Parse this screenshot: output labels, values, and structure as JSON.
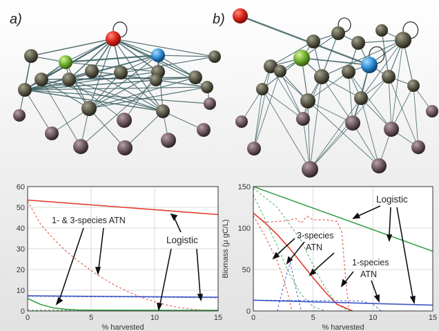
{
  "panels": {
    "a": {
      "letter": "a)"
    },
    "b": {
      "letter": "b)"
    }
  },
  "chart_data": [
    {
      "type": "line",
      "panel": "a",
      "xlabel": "% harvested",
      "ylabel": "",
      "xlim": [
        0,
        15
      ],
      "ylim": [
        0,
        60
      ],
      "xticks": [
        "0",
        "5",
        "10",
        "15"
      ],
      "yticks": [
        "0",
        "10",
        "20",
        "30",
        "40",
        "50",
        "60"
      ],
      "grid": true,
      "series": [
        {
          "color": "#e03a2a",
          "style": "solid",
          "x": [
            0,
            15
          ],
          "y": [
            53.5,
            46.5
          ]
        },
        {
          "color": "#e03a2a",
          "style": "dashed",
          "x": [
            0,
            1,
            2,
            3,
            4,
            5,
            6,
            7,
            8,
            9,
            10,
            11,
            12,
            13,
            14,
            15
          ],
          "y": [
            53,
            42,
            35,
            29,
            24,
            19.5,
            15.5,
            12,
            9,
            6.5,
            4.5,
            2.8,
            1.6,
            0.8,
            0.3,
            0.1
          ]
        },
        {
          "color": "#3b55c4",
          "style": "solid",
          "x": [
            0,
            15
          ],
          "y": [
            7.3,
            6.6
          ]
        },
        {
          "color": "#3b55c4",
          "style": "dashed",
          "x": [
            0,
            15
          ],
          "y": [
            7.1,
            6.4
          ]
        },
        {
          "color": "#3aa04a",
          "style": "solid",
          "x": [
            0,
            1,
            2,
            3,
            4,
            5,
            15
          ],
          "y": [
            6,
            3.2,
            1.5,
            0.8,
            0.5,
            0.4,
            0.3
          ]
        },
        {
          "color": "#3aa04a",
          "style": "dashed",
          "x": [
            0,
            15
          ],
          "y": [
            0.4,
            0.3
          ]
        }
      ],
      "annotations": [
        {
          "text": "1- & 3-species ATN"
        },
        {
          "text": "Logistic"
        }
      ]
    },
    {
      "type": "line",
      "panel": "b",
      "xlabel": "% harvested",
      "ylabel": "Biomass (μ gC/L)",
      "xlim": [
        0,
        15
      ],
      "ylim": [
        0,
        150
      ],
      "xticks": [
        "0",
        "5",
        "10",
        "15"
      ],
      "yticks": [
        "0",
        "50",
        "100",
        "150"
      ],
      "grid": true,
      "series": [
        {
          "color": "#3aa04a",
          "style": "solid",
          "x": [
            0,
            15
          ],
          "y": [
            150,
            72
          ]
        },
        {
          "color": "#3aa04a",
          "style": "dashed",
          "x": [
            0,
            2,
            4,
            5,
            6,
            7,
            8
          ],
          "y": [
            148,
            125,
            85,
            55,
            28,
            8,
            0
          ]
        },
        {
          "color": "#3aa04a",
          "style": "dashed",
          "x": [
            0,
            1,
            2,
            3,
            4,
            5,
            6
          ],
          "y": [
            140,
            110,
            78,
            45,
            20,
            5,
            0
          ]
        },
        {
          "color": "#e03a2a",
          "style": "solid",
          "x": [
            0,
            1,
            2,
            3,
            4,
            5,
            6,
            7,
            8.3
          ],
          "y": [
            118,
            106,
            92,
            76,
            58,
            40,
            23,
            8,
            0
          ]
        },
        {
          "color": "#e03a2a",
          "style": "dashed",
          "x": [
            0,
            1,
            2,
            3,
            3.5,
            4,
            4.5,
            5,
            6,
            7,
            7.4,
            7.7,
            8
          ],
          "y": [
            118,
            107,
            108,
            109,
            112,
            106,
            114,
            110,
            110,
            108,
            95,
            40,
            0
          ]
        },
        {
          "color": "#e03a2a",
          "style": "dashed",
          "x": [
            0,
            1,
            2,
            2.5,
            3,
            3.2
          ],
          "y": [
            115,
            90,
            60,
            40,
            15,
            0
          ]
        },
        {
          "color": "#3b55c4",
          "style": "solid",
          "x": [
            0,
            15
          ],
          "y": [
            13,
            7
          ]
        },
        {
          "color": "#3b55c4",
          "style": "dashed",
          "x": [
            0,
            6,
            9,
            10,
            10.7
          ],
          "y": [
            13,
            12.5,
            12,
            8,
            0
          ]
        },
        {
          "color": "#3b55c4",
          "style": "dashed",
          "x": [
            2,
            2.8,
            3.1,
            3.6,
            4
          ],
          "y": [
            0,
            45,
            58,
            25,
            0
          ]
        }
      ],
      "annotations": [
        {
          "text": "Logistic"
        },
        {
          "text": "3-species"
        },
        {
          "text": "ATN"
        },
        {
          "text": "1-species"
        },
        {
          "text": "ATN"
        }
      ]
    }
  ],
  "shared_axis": {
    "ylabel": "Biomass (μ gC/L)"
  },
  "node_colors": {
    "red": "#d9251c",
    "green": "#6fb02d",
    "blue": "#2e8fd6",
    "olive": "#5c5b4c",
    "mauve": "#6f5a62"
  }
}
